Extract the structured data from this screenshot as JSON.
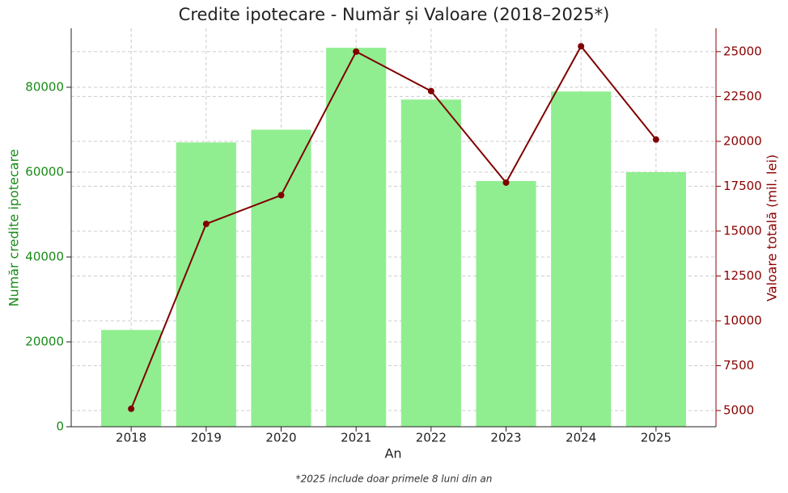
{
  "chart_data": {
    "type": "bar",
    "title": "Credite ipotecare - Număr și Valoare (2018–2025*)",
    "xlabel": "An",
    "ylabel": "Număr credite ipotecare",
    "y2label": "Valoare totală (mil. lei)",
    "footnote": "*2025 include doar primele 8 luni din an",
    "categories": [
      "2018",
      "2019",
      "2020",
      "2021",
      "2022",
      "2023",
      "2024",
      "2025"
    ],
    "series": [
      {
        "name": "Număr credite ipotecare",
        "type": "bar",
        "color": "#90ee90",
        "axis": "y",
        "values": [
          22800,
          67000,
          70000,
          89300,
          77100,
          57900,
          79000,
          60000
        ]
      },
      {
        "name": "Valoare totală (mil. lei)",
        "type": "line",
        "color": "#800000",
        "axis": "y2",
        "values": [
          5100,
          15400,
          17000,
          25000,
          22800,
          17700,
          25300,
          20100
        ]
      }
    ],
    "ylim": [
      0,
      93900
    ],
    "yticks": [
      0,
      20000,
      40000,
      60000,
      80000
    ],
    "y2lim": [
      4100,
      26300
    ],
    "y2ticks": [
      5000,
      7500,
      10000,
      12500,
      15000,
      17500,
      20000,
      22500,
      25000
    ],
    "ycolor": "#1a8a1a",
    "y2color": "#8b0000",
    "grid": true
  }
}
